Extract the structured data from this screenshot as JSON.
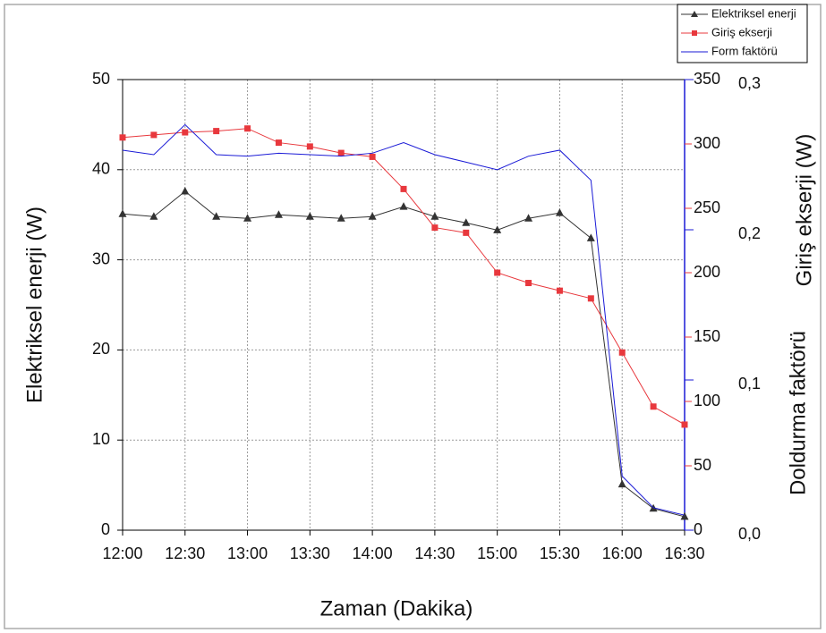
{
  "chart_data": {
    "type": "line",
    "xlabel": "Zaman (Dakika)",
    "ylabel": "Elektriksel enerji (W)",
    "y2label": "Giriş ekserji (W)",
    "y3label": "Doldurma faktörü",
    "categories": [
      "12:00",
      null,
      "12:30",
      null,
      "13:00",
      null,
      "13:30",
      null,
      "14:00",
      null,
      "14:30",
      null,
      "15:00",
      null,
      "15:30",
      null,
      "16:00",
      null,
      "16:30"
    ],
    "series": [
      {
        "name": "Elektriksel enerji",
        "color": "#333333",
        "marker": "triangle",
        "axis": "y",
        "values": [
          35.1,
          34.8,
          37.6,
          34.8,
          34.6,
          35.0,
          34.8,
          34.6,
          34.8,
          35.9,
          34.8,
          34.1,
          33.3,
          34.6,
          35.2,
          32.4,
          5.1,
          2.4,
          1.5
        ]
      },
      {
        "name": "Giriş ekserji",
        "color": "#e8383d",
        "marker": "square",
        "axis": "y2",
        "values": [
          305,
          307,
          309,
          310,
          312,
          301,
          298,
          293,
          290,
          265,
          235,
          231,
          200,
          192,
          186,
          180,
          138,
          96,
          82
        ]
      },
      {
        "name": "Form faktörü",
        "color": "#1a1ad6",
        "marker": null,
        "axis": "y3",
        "values": [
          0.253,
          0.25,
          0.27,
          0.25,
          0.249,
          0.251,
          0.25,
          0.249,
          0.251,
          0.258,
          0.25,
          0.245,
          0.24,
          0.249,
          0.253,
          0.233,
          0.036,
          0.015,
          0.01
        ]
      }
    ],
    "ylim": [
      0,
      50
    ],
    "yticks": [
      0,
      10,
      20,
      30,
      40,
      50
    ],
    "y2lim": [
      0,
      350
    ],
    "y2ticks": [
      0,
      50,
      100,
      150,
      200,
      250,
      300,
      350
    ],
    "y2color": "#e8383d",
    "y3lim": [
      0,
      0.3
    ],
    "y3ticks": [
      {
        "value": 0,
        "label": "0,0"
      },
      {
        "value": 0.1,
        "label": "0,1"
      },
      {
        "value": 0.2,
        "label": "0,2"
      },
      {
        "value": 0.3,
        "label": "0,3"
      }
    ],
    "y3color": "#1a1ad6",
    "grid": true,
    "legend": "top-right"
  }
}
